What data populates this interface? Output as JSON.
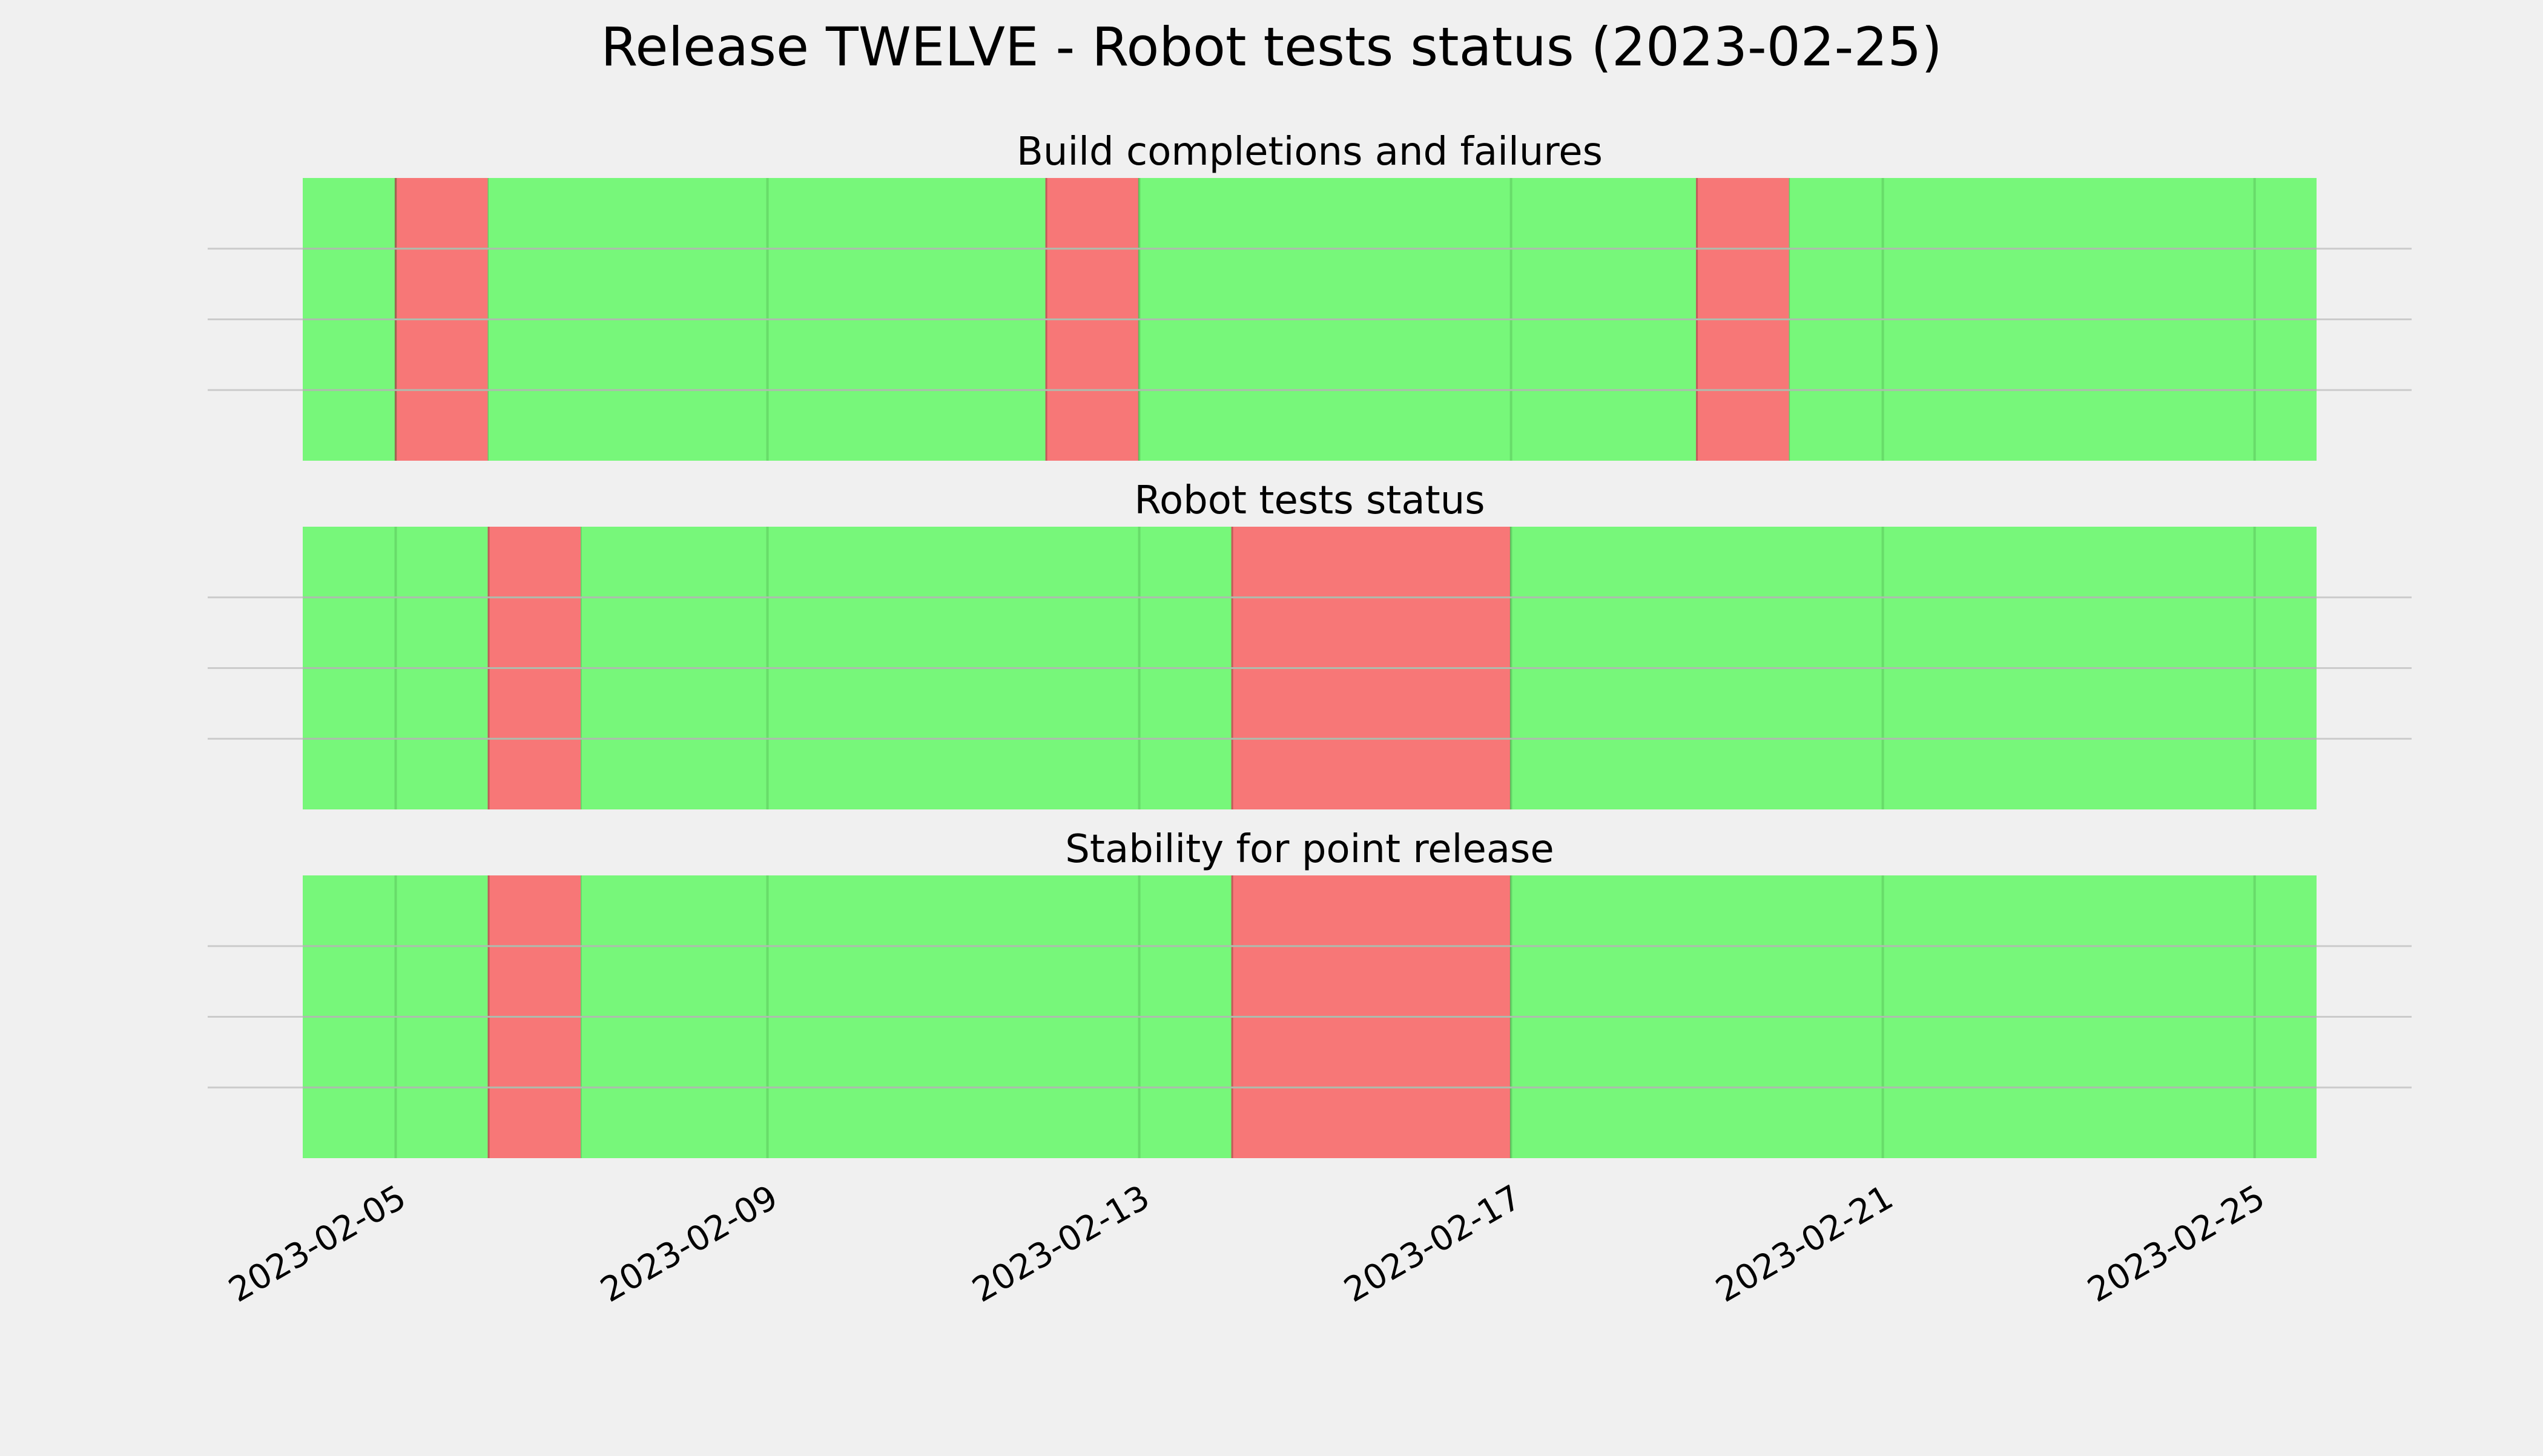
{
  "figure": {
    "title": "Release TWELVE - Robot tests status (2023-02-25)",
    "background": "#f0f0f0",
    "pass_color": "#77f77a",
    "fail_color": "#f77777",
    "grid_color": "#cbcbcb"
  },
  "chart_data": [
    {
      "type": "timeline",
      "title": "Build completions and failures",
      "xlim": [
        "2023-02-04",
        "2023-02-25T16:00"
      ],
      "x_ticks": [
        "2023-02-05",
        "2023-02-09",
        "2023-02-13",
        "2023-02-17",
        "2023-02-21",
        "2023-02-25"
      ],
      "y_gridlines": 3,
      "segments": [
        {
          "start": "2023-02-04",
          "end": "2023-02-05T00:00",
          "status": "pass"
        },
        {
          "start": "2023-02-05T00:00",
          "end": "2023-02-06T00:00",
          "status": "fail"
        },
        {
          "start": "2023-02-06T00:00",
          "end": "2023-02-12T00:00",
          "status": "pass"
        },
        {
          "start": "2023-02-12T00:00",
          "end": "2023-02-13T00:00",
          "status": "fail"
        },
        {
          "start": "2023-02-13T00:00",
          "end": "2023-02-19T00:00",
          "status": "pass"
        },
        {
          "start": "2023-02-19T00:00",
          "end": "2023-02-20T00:00",
          "status": "fail"
        },
        {
          "start": "2023-02-20T00:00",
          "end": "2023-02-25T16:00",
          "status": "pass"
        }
      ]
    },
    {
      "type": "timeline",
      "title": "Robot tests status",
      "xlim": [
        "2023-02-04",
        "2023-02-25T16:00"
      ],
      "x_ticks": [
        "2023-02-05",
        "2023-02-09",
        "2023-02-13",
        "2023-02-17",
        "2023-02-21",
        "2023-02-25"
      ],
      "y_gridlines": 3,
      "segments": [
        {
          "start": "2023-02-04",
          "end": "2023-02-06T00:00",
          "status": "pass"
        },
        {
          "start": "2023-02-06T00:00",
          "end": "2023-02-07T00:00",
          "status": "fail"
        },
        {
          "start": "2023-02-07T00:00",
          "end": "2023-02-14T00:00",
          "status": "pass"
        },
        {
          "start": "2023-02-14T00:00",
          "end": "2023-02-17T00:00",
          "status": "fail"
        },
        {
          "start": "2023-02-17T00:00",
          "end": "2023-02-25T16:00",
          "status": "pass"
        }
      ]
    },
    {
      "type": "timeline",
      "title": "Stability for point release",
      "xlim": [
        "2023-02-04",
        "2023-02-25T16:00"
      ],
      "x_ticks": [
        "2023-02-05",
        "2023-02-09",
        "2023-02-13",
        "2023-02-17",
        "2023-02-21",
        "2023-02-25"
      ],
      "y_gridlines": 3,
      "segments": [
        {
          "start": "2023-02-04",
          "end": "2023-02-06T00:00",
          "status": "pass"
        },
        {
          "start": "2023-02-06T00:00",
          "end": "2023-02-07T00:00",
          "status": "fail"
        },
        {
          "start": "2023-02-07T00:00",
          "end": "2023-02-14T00:00",
          "status": "pass"
        },
        {
          "start": "2023-02-14T00:00",
          "end": "2023-02-17T00:00",
          "status": "fail"
        },
        {
          "start": "2023-02-17T00:00",
          "end": "2023-02-25T16:00",
          "status": "pass"
        }
      ]
    }
  ]
}
